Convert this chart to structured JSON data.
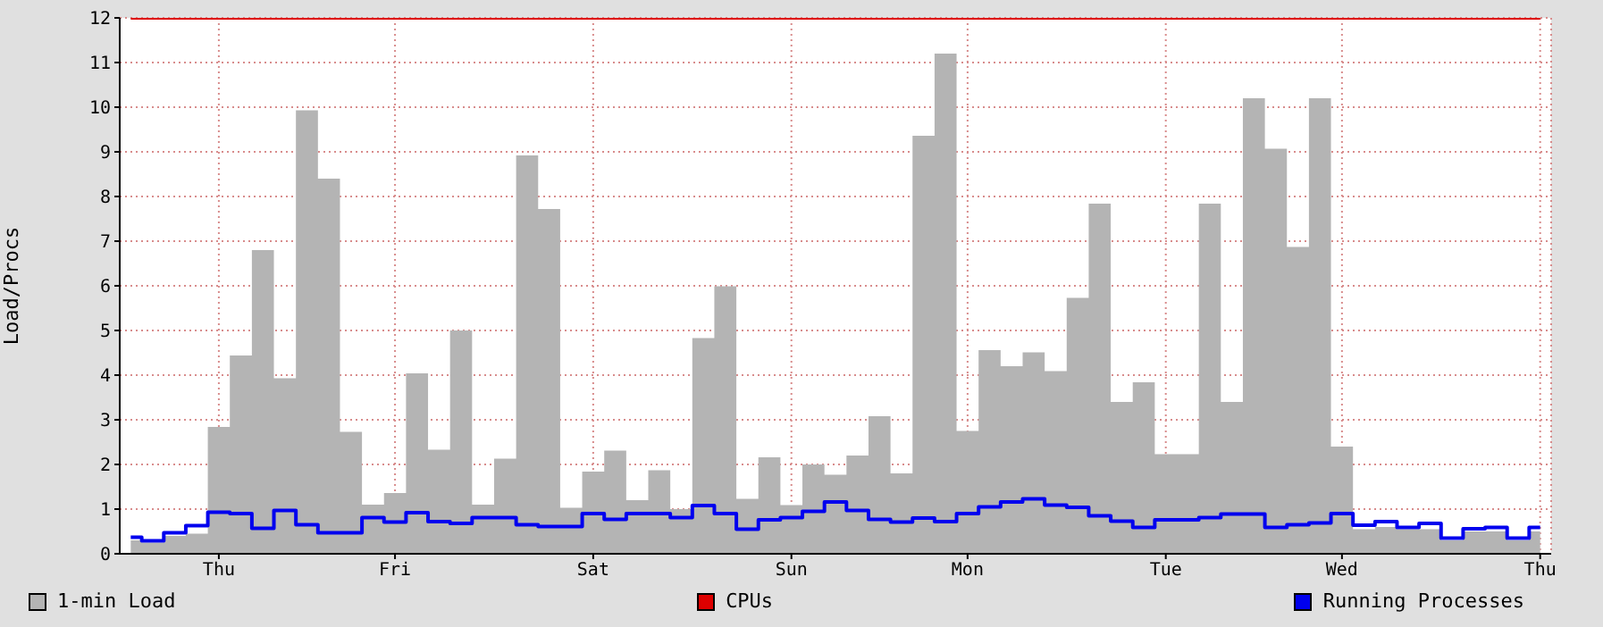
{
  "chart_data": {
    "type": "area",
    "ylabel": "Load/Procs",
    "categories": [
      null,
      null,
      null,
      null,
      "Thu",
      null,
      null,
      null,
      null,
      null,
      null,
      null,
      "Fri",
      null,
      null,
      null,
      null,
      null,
      null,
      null,
      null,
      "Sat",
      null,
      null,
      null,
      null,
      null,
      null,
      null,
      null,
      "Sun",
      null,
      null,
      null,
      null,
      null,
      null,
      null,
      "Mon",
      null,
      null,
      null,
      null,
      null,
      null,
      null,
      null,
      "Tue",
      null,
      null,
      null,
      null,
      null,
      null,
      null,
      "Wed",
      null,
      null,
      null,
      null,
      null,
      null,
      null,
      null,
      "Thu"
    ],
    "series": [
      {
        "name": "1-min Load",
        "color": "#b4b4b4",
        "values": [
          0.3,
          0.25,
          0.4,
          0.45,
          2.84,
          4.44,
          6.8,
          3.93,
          9.93,
          8.4,
          2.73,
          1.1,
          1.36,
          4.04,
          2.33,
          5.0,
          1.1,
          2.13,
          8.92,
          7.72,
          1.03,
          1.84,
          2.31,
          1.2,
          1.87,
          1.0,
          4.83,
          5.99,
          1.23,
          2.16,
          1.09,
          2.0,
          1.77,
          2.2,
          3.08,
          1.8,
          9.36,
          11.2,
          2.75,
          4.56,
          4.2,
          4.51,
          4.09,
          5.73,
          7.84,
          3.4,
          3.84,
          2.23,
          2.23,
          7.84,
          3.4,
          10.2,
          9.07,
          6.87,
          10.2,
          2.4,
          0.55,
          0.6,
          0.55,
          0.55,
          0.3,
          0.5,
          0.5,
          0.3,
          0.5
        ]
      },
      {
        "name": "CPUs",
        "type": "line",
        "color": "#dd0000",
        "values": [
          12,
          12,
          12,
          12,
          12,
          12,
          12,
          12,
          12,
          12,
          12,
          12,
          12,
          12,
          12,
          12,
          12,
          12,
          12,
          12,
          12,
          12,
          12,
          12,
          12,
          12,
          12,
          12,
          12,
          12,
          12,
          12,
          12,
          12,
          12,
          12,
          12,
          12,
          12,
          12,
          12,
          12,
          12,
          12,
          12,
          12,
          12,
          12,
          12,
          12,
          12,
          12,
          12,
          12,
          12,
          12,
          12,
          12,
          12,
          12,
          12,
          12,
          12,
          12,
          12
        ]
      },
      {
        "name": "Running Processes",
        "type": "step",
        "color": "#0000ee",
        "values": [
          0.37,
          0.29,
          0.47,
          0.63,
          0.93,
          0.9,
          0.57,
          0.97,
          0.65,
          0.47,
          0.47,
          0.81,
          0.71,
          0.92,
          0.72,
          0.68,
          0.81,
          0.81,
          0.65,
          0.61,
          0.61,
          0.9,
          0.77,
          0.9,
          0.9,
          0.81,
          1.08,
          0.9,
          0.55,
          0.76,
          0.81,
          0.95,
          1.16,
          0.97,
          0.77,
          0.71,
          0.8,
          0.72,
          0.9,
          1.05,
          1.16,
          1.23,
          1.09,
          1.04,
          0.85,
          0.73,
          0.59,
          0.76,
          0.76,
          0.81,
          0.89,
          0.89,
          0.59,
          0.65,
          0.69,
          0.9,
          0.64,
          0.72,
          0.59,
          0.68,
          0.35,
          0.56,
          0.59,
          0.35,
          0.59
        ]
      }
    ],
    "ylim": [
      0,
      12
    ],
    "yticks": [
      0,
      1,
      2,
      3,
      4,
      5,
      6,
      7,
      8,
      9,
      10,
      11,
      12
    ],
    "grid": true,
    "legend": "bottom"
  }
}
